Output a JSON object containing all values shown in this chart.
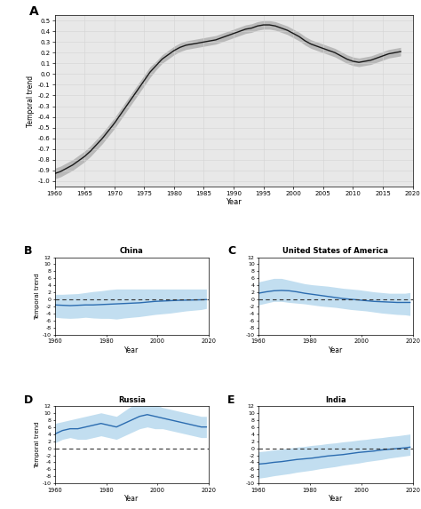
{
  "panel_A": {
    "label": "A",
    "years": [
      1960,
      1961,
      1962,
      1963,
      1964,
      1965,
      1966,
      1967,
      1968,
      1969,
      1970,
      1971,
      1972,
      1973,
      1974,
      1975,
      1976,
      1977,
      1978,
      1979,
      1980,
      1981,
      1982,
      1983,
      1984,
      1985,
      1986,
      1987,
      1988,
      1989,
      1990,
      1991,
      1992,
      1993,
      1994,
      1995,
      1996,
      1997,
      1998,
      1999,
      2000,
      2001,
      2002,
      2003,
      2004,
      2005,
      2006,
      2007,
      2008,
      2009,
      2010,
      2011,
      2012,
      2013,
      2014,
      2015,
      2016,
      2017,
      2018
    ],
    "trend": [
      -0.93,
      -0.91,
      -0.88,
      -0.85,
      -0.81,
      -0.77,
      -0.72,
      -0.66,
      -0.6,
      -0.53,
      -0.46,
      -0.38,
      -0.3,
      -0.22,
      -0.14,
      -0.06,
      0.02,
      0.08,
      0.14,
      0.18,
      0.22,
      0.25,
      0.27,
      0.28,
      0.29,
      0.3,
      0.31,
      0.32,
      0.34,
      0.36,
      0.38,
      0.4,
      0.42,
      0.43,
      0.45,
      0.46,
      0.46,
      0.45,
      0.43,
      0.41,
      0.38,
      0.35,
      0.31,
      0.28,
      0.26,
      0.24,
      0.22,
      0.2,
      0.17,
      0.14,
      0.12,
      0.11,
      0.12,
      0.13,
      0.15,
      0.17,
      0.19,
      0.2,
      0.21
    ],
    "ci_upper": [
      -0.88,
      -0.86,
      -0.83,
      -0.8,
      -0.76,
      -0.72,
      -0.67,
      -0.61,
      -0.55,
      -0.48,
      -0.41,
      -0.33,
      -0.25,
      -0.17,
      -0.09,
      -0.01,
      0.07,
      0.12,
      0.18,
      0.22,
      0.26,
      0.29,
      0.31,
      0.32,
      0.33,
      0.34,
      0.35,
      0.36,
      0.38,
      0.4,
      0.42,
      0.44,
      0.46,
      0.47,
      0.49,
      0.5,
      0.5,
      0.49,
      0.47,
      0.45,
      0.42,
      0.39,
      0.35,
      0.32,
      0.3,
      0.28,
      0.26,
      0.24,
      0.21,
      0.18,
      0.16,
      0.15,
      0.16,
      0.17,
      0.19,
      0.21,
      0.23,
      0.24,
      0.25
    ],
    "ci_lower": [
      -0.98,
      -0.96,
      -0.93,
      -0.9,
      -0.86,
      -0.82,
      -0.77,
      -0.71,
      -0.65,
      -0.58,
      -0.51,
      -0.43,
      -0.35,
      -0.27,
      -0.19,
      -0.11,
      -0.03,
      0.04,
      0.1,
      0.14,
      0.18,
      0.21,
      0.23,
      0.24,
      0.25,
      0.26,
      0.27,
      0.28,
      0.3,
      0.32,
      0.34,
      0.36,
      0.38,
      0.39,
      0.41,
      0.42,
      0.42,
      0.41,
      0.39,
      0.37,
      0.34,
      0.31,
      0.27,
      0.24,
      0.22,
      0.2,
      0.18,
      0.16,
      0.13,
      0.1,
      0.08,
      0.07,
      0.08,
      0.09,
      0.11,
      0.13,
      0.15,
      0.16,
      0.17
    ],
    "ylim": [
      -1.05,
      0.55
    ],
    "yticks": [
      0.5,
      0.4,
      0.3,
      0.2,
      0.1,
      0.0,
      -0.1,
      -0.2,
      -0.3,
      -0.4,
      -0.5,
      -0.6,
      -0.7,
      -0.8,
      -0.9,
      -1.0
    ],
    "xlabel": "Year",
    "ylabel": "Temporal trend",
    "bg_color": "#e8e8e8",
    "line_color": "#1a1a1a",
    "ci_color": "#aaaaaa"
  },
  "panel_B": {
    "label": "B",
    "title": "China",
    "years": [
      1960,
      1963,
      1966,
      1969,
      1972,
      1975,
      1978,
      1981,
      1984,
      1987,
      1990,
      1993,
      1996,
      1999,
      2002,
      2005,
      2008,
      2011,
      2014,
      2017,
      2019
    ],
    "trend": [
      -1.5,
      -1.6,
      -1.7,
      -1.6,
      -1.5,
      -1.5,
      -1.4,
      -1.3,
      -1.2,
      -1.1,
      -1.0,
      -0.9,
      -0.7,
      -0.5,
      -0.4,
      -0.3,
      -0.2,
      -0.15,
      -0.1,
      -0.05,
      0.0
    ],
    "ci_upper": [
      1.5,
      1.5,
      1.6,
      1.7,
      2.0,
      2.3,
      2.5,
      2.8,
      3.0,
      3.0,
      3.0,
      3.0,
      3.0,
      3.0,
      3.0,
      3.0,
      3.0,
      3.0,
      3.0,
      3.0,
      3.0
    ],
    "ci_lower": [
      -5.0,
      -5.2,
      -5.3,
      -5.2,
      -5.0,
      -5.2,
      -5.3,
      -5.3,
      -5.5,
      -5.2,
      -5.0,
      -4.8,
      -4.5,
      -4.2,
      -4.0,
      -3.8,
      -3.5,
      -3.2,
      -3.0,
      -2.8,
      -2.5
    ],
    "ylim": [
      -10,
      12
    ],
    "yticks": [
      -10,
      -8,
      -6,
      -4,
      -2,
      0,
      2,
      4,
      6,
      8,
      10,
      12
    ],
    "xlabel": "Year",
    "ylabel": "Temporal trend"
  },
  "panel_C": {
    "label": "C",
    "title": "United States of America",
    "years": [
      1960,
      1963,
      1966,
      1969,
      1972,
      1975,
      1978,
      1981,
      1984,
      1987,
      1990,
      1993,
      1996,
      1999,
      2002,
      2005,
      2008,
      2011,
      2014,
      2017,
      2019
    ],
    "trend": [
      1.8,
      2.2,
      2.5,
      2.6,
      2.5,
      2.2,
      1.8,
      1.5,
      1.2,
      0.9,
      0.6,
      0.3,
      0.1,
      -0.1,
      -0.3,
      -0.5,
      -0.6,
      -0.7,
      -0.8,
      -0.8,
      -0.8
    ],
    "ci_upper": [
      5.0,
      5.5,
      6.0,
      6.0,
      5.5,
      5.0,
      4.5,
      4.2,
      4.0,
      3.8,
      3.5,
      3.2,
      3.0,
      2.8,
      2.5,
      2.2,
      2.0,
      1.8,
      1.8,
      1.8,
      2.0
    ],
    "ci_lower": [
      -1.5,
      -1.0,
      -0.5,
      -0.5,
      -0.8,
      -1.0,
      -1.2,
      -1.5,
      -1.8,
      -2.0,
      -2.2,
      -2.5,
      -2.8,
      -3.0,
      -3.2,
      -3.5,
      -3.8,
      -4.0,
      -4.2,
      -4.3,
      -4.5
    ],
    "ylim": [
      -10,
      12
    ],
    "yticks": [
      -10,
      -8,
      -6,
      -4,
      -2,
      0,
      2,
      4,
      6,
      8,
      10,
      12
    ],
    "xlabel": "Year",
    "ylabel": "Temporal trend"
  },
  "panel_D": {
    "label": "D",
    "title": "Russia",
    "years": [
      1960,
      1963,
      1966,
      1969,
      1972,
      1975,
      1978,
      1981,
      1984,
      1987,
      1990,
      1993,
      1996,
      1999,
      2002,
      2005,
      2008,
      2011,
      2014,
      2017,
      2019
    ],
    "trend": [
      4.0,
      5.0,
      5.5,
      5.5,
      6.0,
      6.5,
      7.0,
      6.5,
      6.0,
      7.0,
      8.0,
      9.0,
      9.5,
      9.0,
      8.5,
      8.0,
      7.5,
      7.0,
      6.5,
      6.0,
      6.0
    ],
    "ci_upper": [
      7.0,
      7.5,
      8.0,
      8.5,
      9.0,
      9.5,
      10.0,
      9.5,
      9.0,
      10.5,
      12.0,
      12.5,
      13.0,
      12.5,
      11.5,
      11.0,
      10.5,
      10.0,
      9.5,
      9.0,
      9.0
    ],
    "ci_lower": [
      1.5,
      2.5,
      3.0,
      2.5,
      2.5,
      3.0,
      3.5,
      3.0,
      2.5,
      3.5,
      4.5,
      5.5,
      6.0,
      5.5,
      5.5,
      5.0,
      4.5,
      4.0,
      3.5,
      3.0,
      3.0
    ],
    "ylim": [
      -10,
      12
    ],
    "yticks": [
      -10,
      -8,
      -6,
      -4,
      -2,
      0,
      2,
      4,
      6,
      8,
      10,
      12
    ],
    "xlabel": "Year",
    "ylabel": "Temporal trend"
  },
  "panel_E": {
    "label": "E",
    "title": "India",
    "years": [
      1960,
      1963,
      1966,
      1969,
      1972,
      1975,
      1978,
      1981,
      1984,
      1987,
      1990,
      1993,
      1996,
      1999,
      2002,
      2005,
      2008,
      2011,
      2014,
      2017,
      2019
    ],
    "trend": [
      -4.5,
      -4.3,
      -4.0,
      -3.8,
      -3.5,
      -3.2,
      -3.0,
      -2.8,
      -2.5,
      -2.2,
      -2.0,
      -1.8,
      -1.5,
      -1.2,
      -1.0,
      -0.8,
      -0.5,
      -0.3,
      -0.1,
      0.1,
      0.3
    ],
    "ci_upper": [
      -1.0,
      -0.8,
      -0.5,
      -0.3,
      0.0,
      0.3,
      0.5,
      0.8,
      1.0,
      1.3,
      1.5,
      1.8,
      2.0,
      2.3,
      2.5,
      2.8,
      3.0,
      3.3,
      3.5,
      3.8,
      4.0
    ],
    "ci_lower": [
      -8.5,
      -8.2,
      -7.8,
      -7.5,
      -7.2,
      -6.8,
      -6.5,
      -6.2,
      -5.8,
      -5.5,
      -5.2,
      -4.8,
      -4.5,
      -4.2,
      -3.8,
      -3.5,
      -3.2,
      -2.8,
      -2.5,
      -2.2,
      -2.0
    ],
    "ylim": [
      -10,
      12
    ],
    "yticks": [
      -10,
      -8,
      -6,
      -4,
      -2,
      0,
      2,
      4,
      6,
      8,
      10,
      12
    ],
    "xlabel": "Year",
    "ylabel": "Temporal trend"
  },
  "blue_line_color": "#2b6cb0",
  "blue_fill_color": "#90c4e4",
  "blue_fill_alpha": 0.55,
  "sub_bg_color": "#ffffff",
  "xticks_sub": [
    1960,
    1980,
    2000,
    2020
  ],
  "grid_color": "#e0e0e0",
  "grid_linewidth": 0.4
}
